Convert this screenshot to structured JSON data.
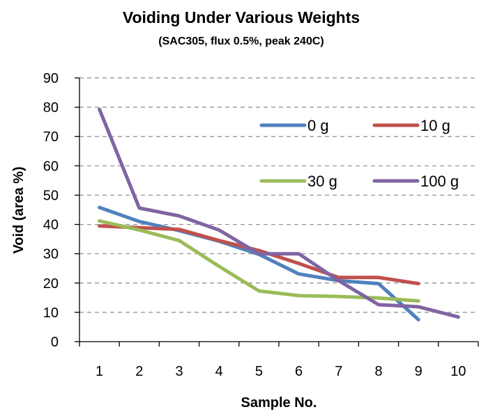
{
  "chart_data": {
    "type": "line",
    "title": "Voiding Under Various Weights",
    "subtitle": "(SAC305, flux 0.5%, peak 240C)",
    "xlabel": "Sample No.",
    "ylabel": "Void (area %)",
    "categories": [
      "1",
      "2",
      "3",
      "4",
      "5",
      "6",
      "7",
      "8",
      "9",
      "10"
    ],
    "ylim": [
      0,
      90
    ],
    "yticks": [
      "0",
      "10",
      "20",
      "30",
      "40",
      "50",
      "60",
      "70",
      "80",
      "90"
    ],
    "grid": true,
    "legend_position": "top-right",
    "series": [
      {
        "name": "0 g",
        "color": "#4f81bd",
        "values": [
          45.8,
          41.0,
          37.9,
          34.3,
          29.8,
          23.1,
          20.8,
          19.8,
          7.5,
          null
        ]
      },
      {
        "name": "10 g",
        "color": "#c0504d",
        "values": [
          39.5,
          38.9,
          38.3,
          34.5,
          31.1,
          26.7,
          21.9,
          21.9,
          19.8,
          null
        ]
      },
      {
        "name": "30 g",
        "color": "#9bbb59",
        "values": [
          41.2,
          38.1,
          34.5,
          25.7,
          17.3,
          15.7,
          15.4,
          14.9,
          13.9,
          null
        ]
      },
      {
        "name": "100 g",
        "color": "#8064a2",
        "values": [
          79.3,
          45.6,
          42.9,
          38.1,
          30.0,
          30.0,
          20.8,
          12.6,
          11.9,
          8.4
        ]
      }
    ]
  }
}
